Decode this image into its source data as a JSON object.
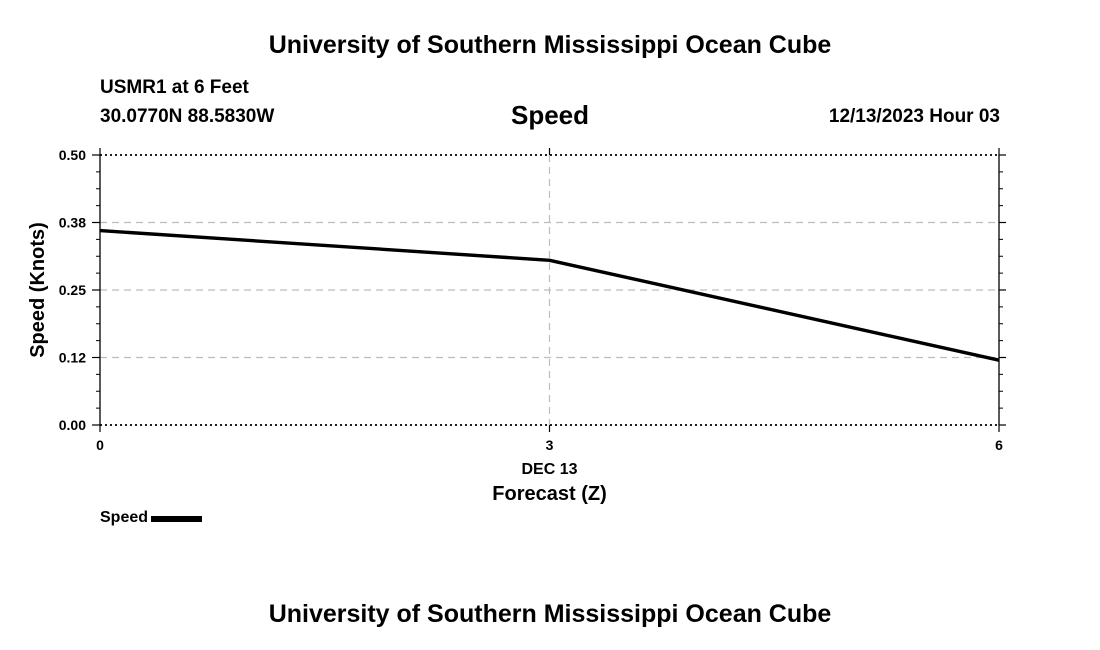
{
  "header": {
    "title": "University of Southern Mississippi Ocean Cube",
    "station": "USMR1 at 6 Feet",
    "coords": "30.0770N  88.5830W",
    "datetime": "12/13/2023 Hour 03"
  },
  "footer": {
    "title": "University of Southern Mississippi Ocean Cube"
  },
  "chart_data": {
    "type": "line",
    "title": "Speed",
    "xlabel": "Forecast (Z)",
    "ylabel": "Speed (Knots)",
    "x_date_label": "DEC 13",
    "xlim": [
      0,
      6
    ],
    "ylim": [
      0,
      0.5
    ],
    "x_ticks": [
      0,
      3,
      6
    ],
    "x_tick_labels": [
      "0",
      "3",
      "6"
    ],
    "y_ticks": [
      0.0,
      0.125,
      0.25,
      0.375,
      0.5
    ],
    "y_tick_labels": [
      "0.00",
      "0.12",
      "0.25",
      "0.38",
      "0.50"
    ],
    "grid": true,
    "series": [
      {
        "name": "Speed",
        "x": [
          0,
          3,
          6
        ],
        "values": [
          0.36,
          0.305,
          0.12
        ],
        "color": "#000000"
      }
    ],
    "legend": {
      "position": "bottom-left",
      "label": "Speed"
    }
  }
}
